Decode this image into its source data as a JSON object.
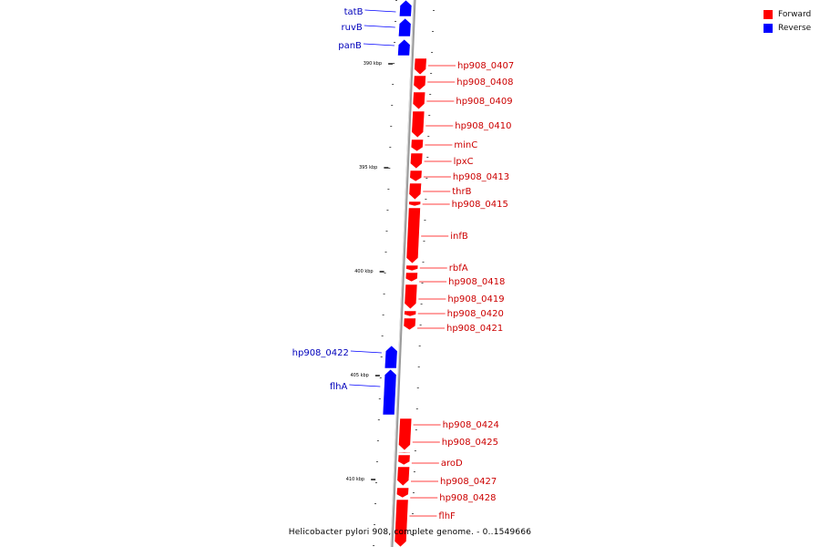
{
  "caption": "Helicobacter pylori 908, complete genome. - 0..1549666",
  "legend": [
    {
      "name": "Forward",
      "color": "#ff0000"
    },
    {
      "name": "Reverse",
      "color": "#0000ff"
    }
  ],
  "colors": {
    "forward": "#ff0000",
    "reverse": "#0000ff",
    "backbone": "#999999"
  },
  "ticks": [
    {
      "label": "390 kbp",
      "pos": 390
    },
    {
      "label": "395 kbp",
      "pos": 395
    },
    {
      "label": "400 kbp",
      "pos": 400
    },
    {
      "label": "405 kbp",
      "pos": 405
    },
    {
      "label": "410 kbp",
      "pos": 410
    }
  ],
  "genes": [
    {
      "name": "tatB",
      "strand": "reverse"
    },
    {
      "name": "ruvB",
      "strand": "reverse"
    },
    {
      "name": "panB",
      "strand": "reverse"
    },
    {
      "name": "hp908_0407",
      "strand": "forward"
    },
    {
      "name": "hp908_0408",
      "strand": "forward"
    },
    {
      "name": "hp908_0409",
      "strand": "forward"
    },
    {
      "name": "hp908_0410",
      "strand": "forward"
    },
    {
      "name": "minC",
      "strand": "forward"
    },
    {
      "name": "lpxC",
      "strand": "forward"
    },
    {
      "name": "hp908_0413",
      "strand": "forward"
    },
    {
      "name": "thrB",
      "strand": "forward"
    },
    {
      "name": "hp908_0415",
      "strand": "forward"
    },
    {
      "name": "infB",
      "strand": "forward"
    },
    {
      "name": "rbfA",
      "strand": "forward"
    },
    {
      "name": "hp908_0418",
      "strand": "forward"
    },
    {
      "name": "hp908_0419",
      "strand": "forward"
    },
    {
      "name": "hp908_0420",
      "strand": "forward"
    },
    {
      "name": "hp908_0421",
      "strand": "forward"
    },
    {
      "name": "hp908_0422",
      "strand": "reverse"
    },
    {
      "name": "flhA",
      "strand": "reverse"
    },
    {
      "name": "hp908_0424",
      "strand": "forward"
    },
    {
      "name": "hp908_0425",
      "strand": "forward"
    },
    {
      "name": "aroD",
      "strand": "forward"
    },
    {
      "name": "hp908_0427",
      "strand": "forward"
    },
    {
      "name": "hp908_0428",
      "strand": "forward"
    },
    {
      "name": "flhF",
      "strand": "forward"
    }
  ]
}
